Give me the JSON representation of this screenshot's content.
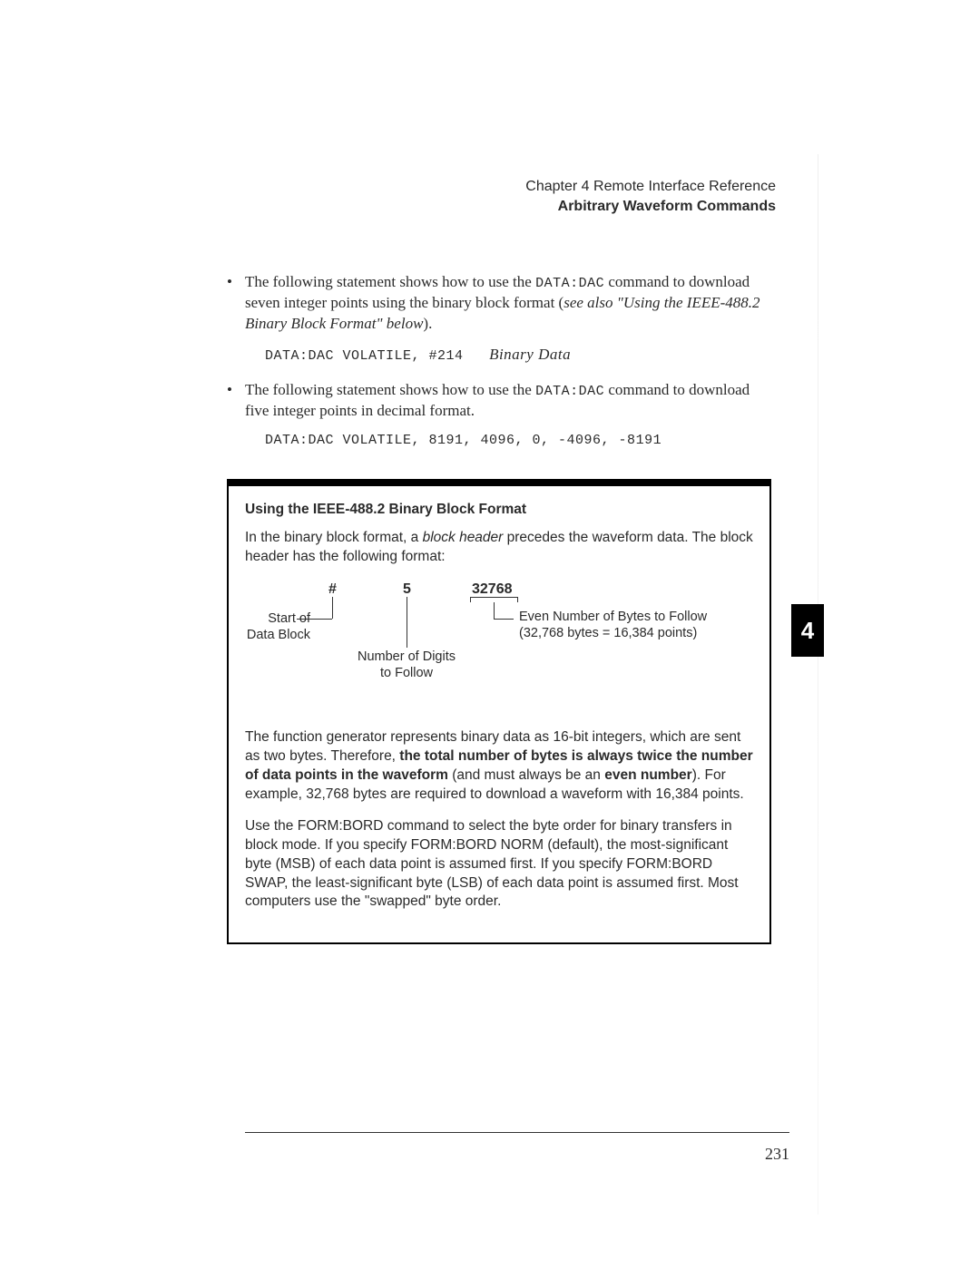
{
  "header": {
    "chapter_line": "Chapter 4  Remote Interface Reference",
    "section_line": "Arbitrary Waveform Commands",
    "tab_number": "4"
  },
  "bullets": [
    {
      "pre": "The following statement shows how to use the ",
      "code_inline": "DATA:DAC",
      "post": " command to download seven integer points using the binary block format (",
      "italic": "see also \"Using the IEEE-488.2 Binary Block Format\" below",
      "tail": ").",
      "code_line_pre": "DATA:DAC VOLATILE, #214",
      "code_line_it": "Binary Data"
    },
    {
      "pre": "The following statement shows how to use the ",
      "code_inline": "DATA:DAC",
      "post": "  command to download five integer points in decimal format.",
      "italic": "",
      "tail": "",
      "code_line_pre": "DATA:DAC VOLATILE, 8191, 4096, 0, -4096, -8191",
      "code_line_it": ""
    }
  ],
  "box": {
    "title": "Using the IEEE-488.2 Binary Block Format",
    "intro_pre": "In the binary block format, a ",
    "intro_it": "block header",
    "intro_post": " precedes the waveform data. The block header has the following format:",
    "diagram": {
      "hash": "#",
      "five": "5",
      "bytes": "32768",
      "label_start_l1": "Start of",
      "label_start_l2": "Data Block",
      "label_digits_l1": "Number of Digits",
      "label_digits_l2": "to Follow",
      "label_bytes_l1": "Even Number of Bytes to Follow",
      "label_bytes_l2": "(32,768 bytes = 16,384 points)"
    },
    "para2_a": "The function generator represents binary data as 16-bit integers, which are sent as two bytes. Therefore, ",
    "para2_bold1": "the total number of bytes is always twice the number of data points in the waveform",
    "para2_b": " (and must always be an ",
    "para2_bold2": "even number",
    "para2_c": "). For example, 32,768 bytes are required to download a waveform with 16,384 points.",
    "para3": "Use the FORM:BORD command to select the byte order for binary transfers in block mode. If you specify FORM:BORD NORM (default), the most-significant byte (MSB) of each data point is assumed first. If you specify FORM:BORD SWAP, the least-significant byte (LSB) of each data point is assumed first. Most computers use the \"swapped\" byte order."
  },
  "footer": {
    "page_number": "231"
  }
}
